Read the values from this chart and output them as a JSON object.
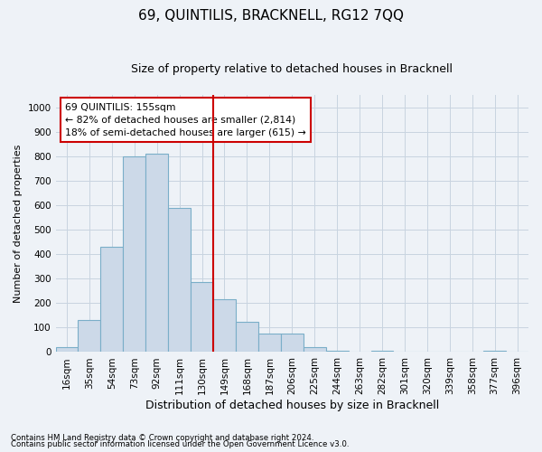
{
  "title": "69, QUINTILIS, BRACKNELL, RG12 7QQ",
  "subtitle": "Size of property relative to detached houses in Bracknell",
  "xlabel": "Distribution of detached houses by size in Bracknell",
  "ylabel": "Number of detached properties",
  "footnote1": "Contains HM Land Registry data © Crown copyright and database right 2024.",
  "footnote2": "Contains public sector information licensed under the Open Government Licence v3.0.",
  "annotation_line1": "69 QUINTILIS: 155sqm",
  "annotation_line2": "← 82% of detached houses are smaller (2,814)",
  "annotation_line3": "18% of semi-detached houses are larger (615) →",
  "bar_color": "#ccd9e8",
  "bar_edge_color": "#7aaec8",
  "vline_color": "#cc0000",
  "annotation_box_edge": "#cc0000",
  "annotation_box_face": "#ffffff",
  "grid_color": "#c8d4e0",
  "background_color": "#eef2f7",
  "categories": [
    "16sqm",
    "35sqm",
    "54sqm",
    "73sqm",
    "92sqm",
    "111sqm",
    "130sqm",
    "149sqm",
    "168sqm",
    "187sqm",
    "206sqm",
    "225sqm",
    "244sqm",
    "263sqm",
    "282sqm",
    "301sqm",
    "320sqm",
    "339sqm",
    "358sqm",
    "377sqm",
    "396sqm"
  ],
  "values": [
    20,
    130,
    430,
    800,
    810,
    590,
    285,
    215,
    125,
    75,
    75,
    20,
    5,
    0,
    5,
    0,
    0,
    0,
    0,
    5,
    0
  ],
  "vline_x": 7,
  "ylim": [
    0,
    1050
  ],
  "yticks": [
    0,
    100,
    200,
    300,
    400,
    500,
    600,
    700,
    800,
    900,
    1000
  ],
  "title_fontsize": 11,
  "subtitle_fontsize": 9,
  "tick_fontsize": 7.5,
  "ylabel_fontsize": 8,
  "xlabel_fontsize": 9
}
